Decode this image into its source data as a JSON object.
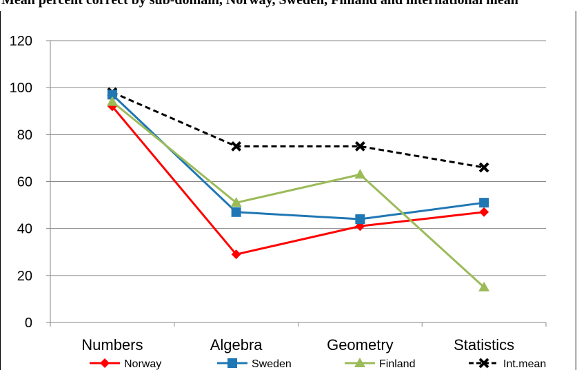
{
  "header": {
    "text": "Mean percent correct by sub-domain, Norway, Sweden, Finland and international mean"
  },
  "chart_data": {
    "type": "line",
    "categories": [
      "Numbers",
      "Algebra",
      "Geometry",
      "Statistics"
    ],
    "ylim": [
      0,
      120
    ],
    "yticks": [
      0,
      20,
      40,
      60,
      80,
      100,
      120
    ],
    "grid": true,
    "legend_position": "bottom",
    "series": [
      {
        "name": "Norway",
        "values": [
          92,
          29,
          41,
          47
        ],
        "color": "#ff0000",
        "marker": "diamond",
        "dash": "solid"
      },
      {
        "name": "Sweden",
        "values": [
          97,
          47,
          44,
          51
        ],
        "color": "#1f77b4",
        "marker": "square",
        "dash": "solid"
      },
      {
        "name": "Finland",
        "values": [
          94,
          51,
          63,
          15
        ],
        "color": "#9bbb59",
        "marker": "triangle",
        "dash": "solid"
      },
      {
        "name": "Int.mean",
        "values": [
          98,
          75,
          75,
          66
        ],
        "color": "#000000",
        "marker": "x",
        "dash": "dashed"
      }
    ]
  }
}
